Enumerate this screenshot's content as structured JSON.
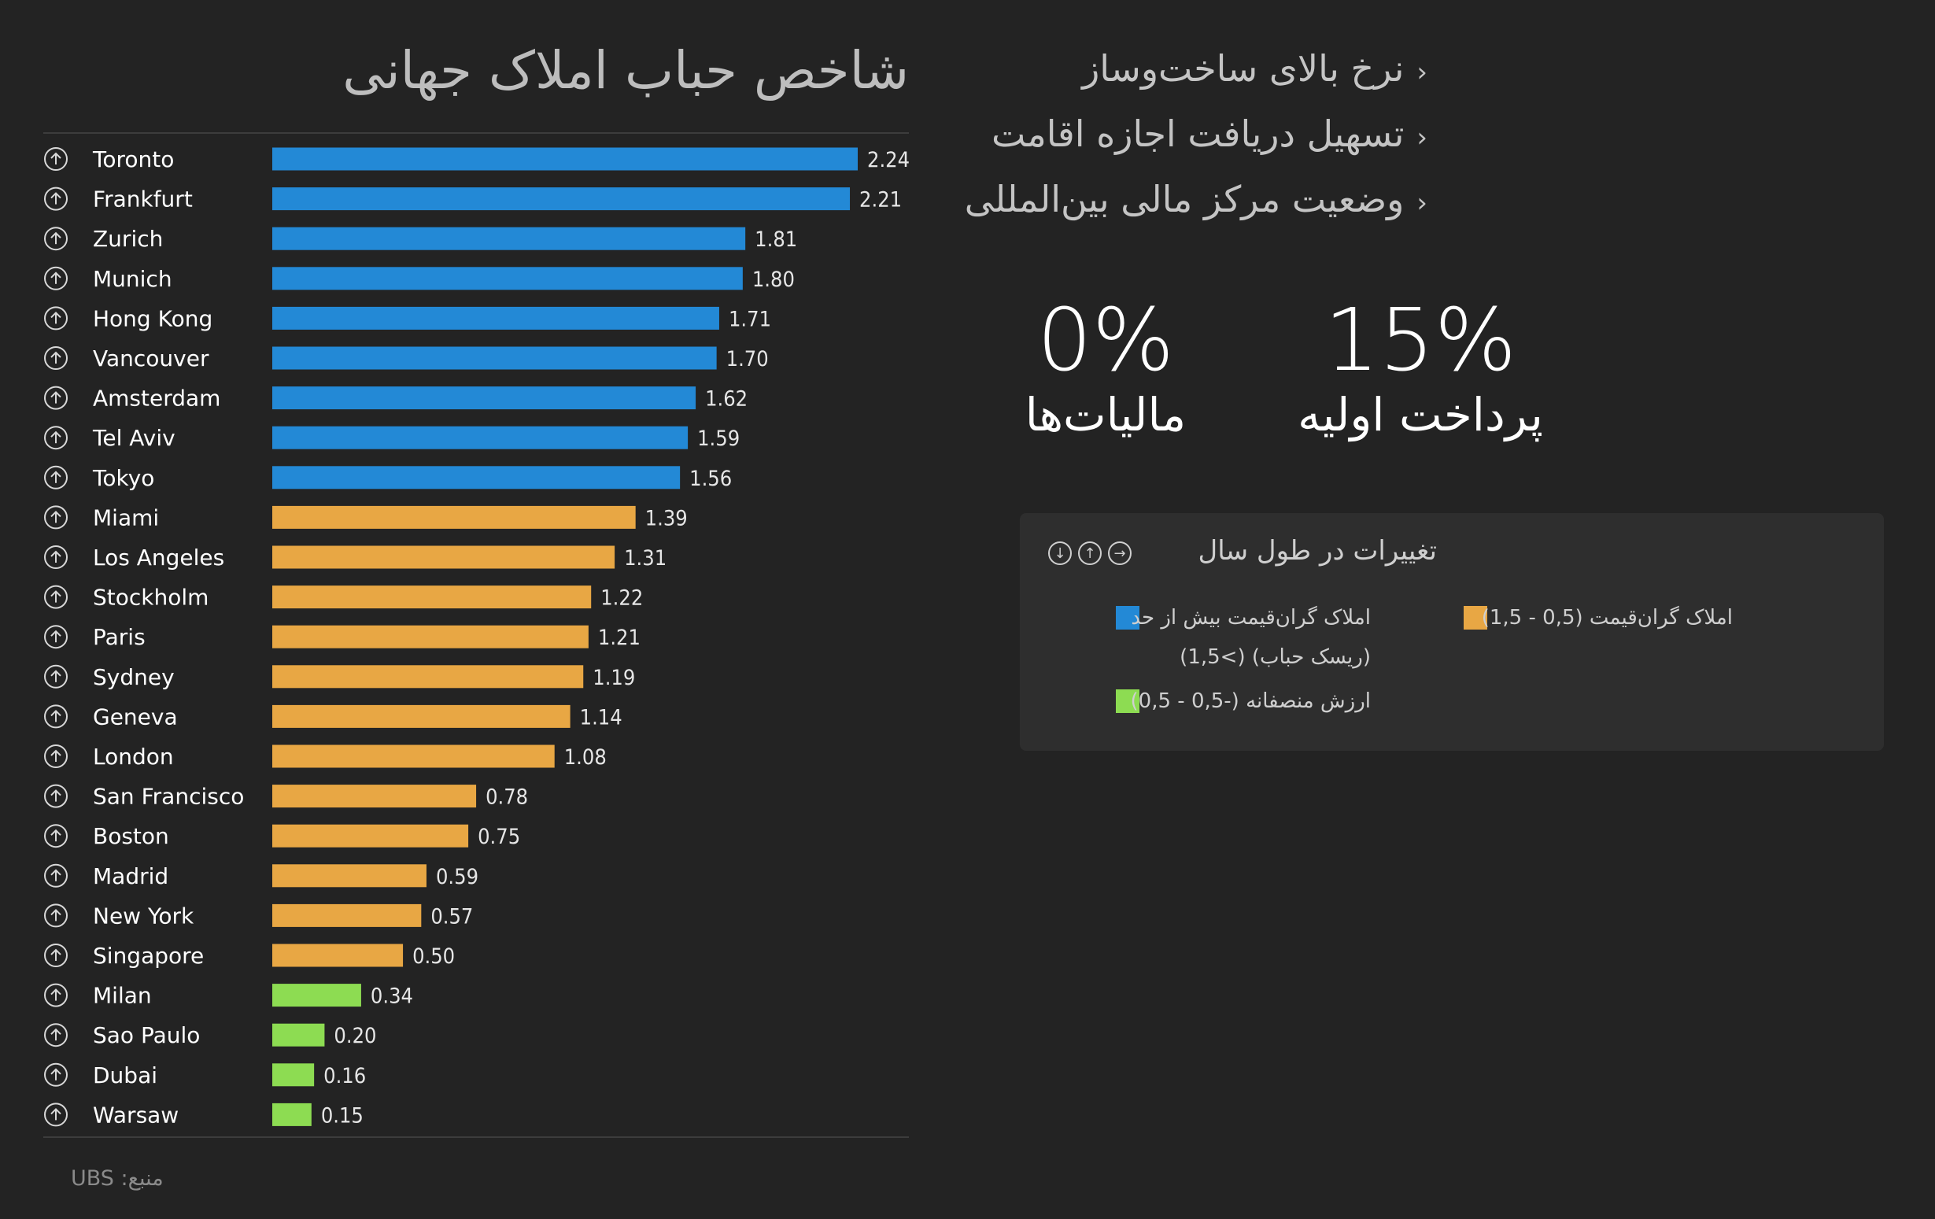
{
  "title": "شاخص حباب املاک جهانی",
  "source": "منبع: UBS",
  "bullets": [
    "نرخ بالای ساخت‌وساز",
    "تسهیل دریافت اجازه اقامت",
    "وضعیت مرکز مالی بین‌المللی"
  ],
  "stats": {
    "tax_value": "0%",
    "tax_label": "مالیات‌ها",
    "down_value": "15%",
    "down_label": "پرداخت اولیه"
  },
  "legend": {
    "title": "تغییرات در طول سال",
    "blue_line1": "املاک گران‌قیمت بیش از حد",
    "blue_line2": "(ریسک حباب) (>1,5)",
    "orange": "املاک گران‌قیمت (0,5 - 1,5)",
    "green": "ارزش منصفانه (-0,5 - 0,5)"
  },
  "colors": {
    "blue": "#2389d6",
    "orange": "#e8a744",
    "green": "#8ddc52"
  },
  "chart_data": {
    "type": "bar",
    "orientation": "horizontal",
    "title": "شاخص حباب املاک جهانی",
    "categories": [
      "Toronto",
      "Frankfurt",
      "Zurich",
      "Munich",
      "Hong Kong",
      "Vancouver",
      "Amsterdam",
      "Tel Aviv",
      "Tokyo",
      "Miami",
      "Los Angeles",
      "Stockholm",
      "Paris",
      "Sydney",
      "Geneva",
      "London",
      "San Francisco",
      "Boston",
      "Madrid",
      "New York",
      "Singapore",
      "Milan",
      "Sao Paulo",
      "Dubai",
      "Warsaw"
    ],
    "values": [
      2.24,
      2.21,
      1.81,
      1.8,
      1.71,
      1.7,
      1.62,
      1.59,
      1.56,
      1.39,
      1.31,
      1.22,
      1.21,
      1.19,
      1.14,
      1.08,
      0.78,
      0.75,
      0.59,
      0.57,
      0.5,
      0.34,
      0.2,
      0.16,
      0.15
    ],
    "labels": [
      "2.24",
      "2.21",
      "1.81",
      "1.80",
      "1.71",
      "1.70",
      "1.62",
      "1.59",
      "1.56",
      "1.39",
      "1.31",
      "1.22",
      "1.21",
      "1.19",
      "1.14",
      "1.08",
      "0.78",
      "0.75",
      "0.59",
      "0.57",
      "0.50",
      "0.34",
      "0.20",
      "0.16",
      "0.15"
    ],
    "trend": [
      "up",
      "up",
      "up",
      "up",
      "up",
      "up",
      "up",
      "up",
      "up",
      "up",
      "up",
      "up",
      "up",
      "up",
      "up",
      "up",
      "up",
      "up",
      "up",
      "up",
      "up",
      "up",
      "up",
      "up",
      "up"
    ],
    "category_colors": [
      "blue",
      "blue",
      "blue",
      "blue",
      "blue",
      "blue",
      "blue",
      "blue",
      "blue",
      "orange",
      "orange",
      "orange",
      "orange",
      "orange",
      "orange",
      "orange",
      "orange",
      "orange",
      "orange",
      "orange",
      "orange",
      "green",
      "green",
      "green",
      "green"
    ],
    "xlim": [
      0,
      2.24
    ]
  }
}
